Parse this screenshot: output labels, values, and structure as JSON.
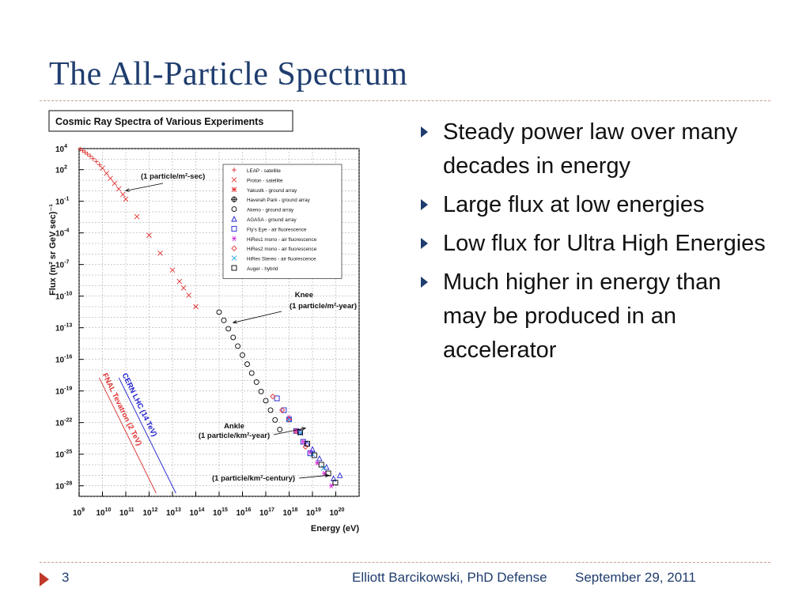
{
  "slide": {
    "title": "The All-Particle Spectrum",
    "bullets": [
      "Steady power law over many decades in energy",
      "Large flux at low energies",
      "Low flux for Ultra High Energies",
      "Much higher in energy than may be produced in an accelerator"
    ]
  },
  "footer": {
    "page_number": "3",
    "author": "Elliott Barcikowski, PhD Defense",
    "date": "September 29, 2011"
  },
  "colors": {
    "title": "#1f3d6e",
    "accent_red": "#c0392b",
    "divider": "#c9a090"
  },
  "chart_data": {
    "type": "scatter",
    "title": "Cosmic Ray Spectra of Various Experiments",
    "xlabel": "Energy (eV)",
    "ylabel": "Flux (m² sr GeV sec)⁻¹",
    "x_scale": "log",
    "y_scale": "log",
    "xlim": [
      1000000000.0,
      1e+21
    ],
    "ylim": [
      1e-29,
      10000.0
    ],
    "grid": true,
    "x_tick_labels": [
      {
        "base": "10",
        "exp": "9"
      },
      {
        "base": "10",
        "exp": "10"
      },
      {
        "base": "10",
        "exp": "11"
      },
      {
        "base": "10",
        "exp": "12"
      },
      {
        "base": "10",
        "exp": "13"
      },
      {
        "base": "10",
        "exp": "14"
      },
      {
        "base": "10",
        "exp": "15"
      },
      {
        "base": "10",
        "exp": "16"
      },
      {
        "base": "10",
        "exp": "17"
      },
      {
        "base": "10",
        "exp": "18"
      },
      {
        "base": "10",
        "exp": "19"
      },
      {
        "base": "10",
        "exp": "20"
      }
    ],
    "y_tick_labels": [
      {
        "base": "10",
        "exp": "4"
      },
      {
        "base": "10",
        "exp": "2"
      },
      {
        "base": "10",
        "exp": "-1"
      },
      {
        "base": "10",
        "exp": "-4"
      },
      {
        "base": "10",
        "exp": "-7"
      },
      {
        "base": "10",
        "exp": "-10"
      },
      {
        "base": "10",
        "exp": "-13"
      },
      {
        "base": "10",
        "exp": "-16"
      },
      {
        "base": "10",
        "exp": "-19"
      },
      {
        "base": "10",
        "exp": "-22"
      },
      {
        "base": "10",
        "exp": "-25"
      },
      {
        "base": "10",
        "exp": "-28"
      }
    ],
    "legend_placement": "top-right",
    "legend": [
      {
        "name": "LEAP - satellite",
        "marker": "plus",
        "color": "#e03030"
      },
      {
        "name": "Proton - satellite",
        "marker": "cross",
        "color": "#e03030"
      },
      {
        "name": "Yakustk - ground array",
        "marker": "star",
        "color": "#e03030"
      },
      {
        "name": "Haverah Park - ground array",
        "marker": "cross-circle",
        "color": "#000000"
      },
      {
        "name": "Akeno - ground array",
        "marker": "circle",
        "color": "#000000"
      },
      {
        "name": "AGASA - ground array",
        "marker": "triangle",
        "color": "#2020d0"
      },
      {
        "name": "Fly's Eye - air fluorescence",
        "marker": "square",
        "color": "#2020d0"
      },
      {
        "name": "HiRes1 mono - air fluorescence",
        "marker": "asterisk",
        "color": "#d020d0"
      },
      {
        "name": "HiRes2 mono - air fluorescence",
        "marker": "diamond",
        "color": "#e03030"
      },
      {
        "name": "HiRes Stereo - air fluorescence",
        "marker": "cross",
        "color": "#20a0e0"
      },
      {
        "name": "Auger - hybrid",
        "marker": "square",
        "color": "#000000"
      }
    ],
    "series": [
      {
        "name": "LEAP - satellite",
        "x": [
          1100000000.0,
          1400000000.0,
          1800000000.0,
          2300000000.0,
          3000000000.0,
          4000000000.0,
          5500000000.0,
          7500000000.0
        ],
        "y": [
          9000,
          6500,
          4500,
          3000,
          1900,
          1100,
          600,
          300
        ]
      },
      {
        "name": "Proton - satellite",
        "x": [
          10000000000.0,
          15000000000.0,
          22000000000.0,
          33000000000.0,
          50000000000.0,
          75000000000.0,
          100000000000.0,
          300000000000.0,
          1000000000000.0,
          3000000000000.0,
          10000000000000.0,
          20000000000000.0,
          30000000000000.0,
          50000000000000.0,
          100000000000000.0
        ],
        "y": [
          140,
          45,
          15,
          5,
          1.5,
          0.45,
          0.16,
          0.0035,
          6e-05,
          1.2e-06,
          3e-08,
          2.5e-09,
          6e-10,
          1.2e-10,
          1e-11
        ]
      },
      {
        "name": "Akeno - ground array",
        "x": [
          1000000000000000.0,
          1600000000000000.0,
          2500000000000000.0,
          4000000000000000.0,
          6300000000000000.0,
          1e+16,
          1.6e+16,
          2.5e+16,
          4e+16,
          6.3e+16,
          1e+17,
          1.6e+17,
          2.5e+17,
          4e+17
        ],
        "y": [
          3e-12,
          5e-13,
          8e-14,
          1.2e-14,
          1.8e-15,
          2.5e-16,
          3.5e-17,
          5e-18,
          7e-19,
          9e-20,
          1.2e-20,
          1.5e-21,
          1.8e-22,
          2.2e-23
        ]
      },
      {
        "name": "Fly's Eye - air fluorescence",
        "x": [
          3e+17,
          6e+17,
          1e+18,
          2e+18,
          4e+18,
          8e+18
        ],
        "y": [
          2e-20,
          1.5e-21,
          2e-22,
          1.6e-23,
          1.5e-24,
          1.2e-25
        ]
      },
      {
        "name": "AGASA - ground array",
        "x": [
          3e+18,
          6e+18,
          1e+19,
          2e+19,
          4e+19,
          8e+19,
          1.5e+20
        ],
        "y": [
          1.3e-23,
          1e-24,
          3e-25,
          4e-26,
          6e-27,
          5e-28,
          1e-27
        ]
      },
      {
        "name": "HiRes1 mono - air fluorescence",
        "x": [
          1e+18,
          2e+18,
          4e+18,
          8e+18,
          1.6e+19,
          3.2e+19,
          6.4e+19
        ],
        "y": [
          3e-22,
          1.5e-23,
          1.5e-24,
          1.5e-25,
          1.5e-26,
          1.5e-27,
          1e-28
        ]
      },
      {
        "name": "HiRes2 mono - air fluorescence",
        "x": [
          2e+17,
          5e+17,
          1e+18,
          2e+18,
          5e+18
        ],
        "y": [
          3e-20,
          1.5e-21,
          2e-22,
          1.5e-23,
          5e-25
        ]
      },
      {
        "name": "HiRes Stereo - air fluorescence",
        "x": [
          1e+18,
          3e+18,
          1e+19,
          3e+19
        ],
        "y": [
          2e-22,
          1e-23,
          1e-25,
          5e-27
        ]
      },
      {
        "name": "Auger - hybrid",
        "x": [
          3e+18,
          6e+18,
          1.2e+19,
          2.4e+19,
          4.8e+19,
          9.6e+19
        ],
        "y": [
          1.2e-23,
          1e-24,
          8e-26,
          1e-26,
          1.5e-27,
          2e-28
        ]
      }
    ],
    "annotations": [
      {
        "id": "one-per-sec",
        "text": "(1 particle/m²-sec)",
        "x": 100000000000.0,
        "y": 1
      },
      {
        "id": "knee-title",
        "text": "Knee",
        "x": 4000000000000000.0,
        "y": 3e-13
      },
      {
        "id": "knee-rate",
        "text": "(1 particle/m²-year)",
        "x": 4000000000000000.0,
        "y": 3e-13
      },
      {
        "id": "ankle-title",
        "text": "Ankle",
        "x": 5e+18,
        "y": 3e-23
      },
      {
        "id": "ankle-rate",
        "text": "(1 particle/km²-year)",
        "x": 5e+18,
        "y": 3e-23
      },
      {
        "id": "century",
        "text": "(1 particle/km²-century)",
        "x": 5e+19,
        "y": 1e-27
      }
    ],
    "accelerator_limits": [
      {
        "text": "FNAL Tevatron (2 TeV)",
        "energy": 2000000000000.0,
        "color": "#e03030"
      },
      {
        "text": "CERN LHC (14 TeV)",
        "energy": 14000000000000.0,
        "color": "#2020d0"
      }
    ]
  }
}
